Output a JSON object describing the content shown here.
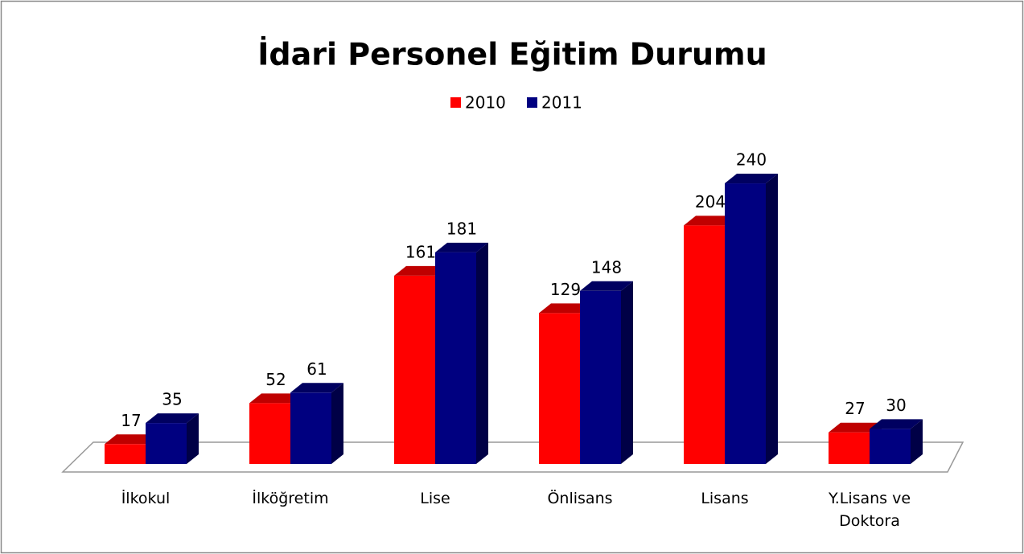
{
  "chart_data": {
    "type": "bar3d",
    "title": "İdari Personel Eğitim Durumu",
    "categories": [
      "İlkokul",
      "İlköğretim",
      "Lise",
      "Önlisans",
      "Lisans",
      "Y.Lisans ve Doktora"
    ],
    "series": [
      {
        "name": "2010",
        "color": "#ff0000",
        "values": [
          17,
          52,
          161,
          129,
          204,
          27
        ]
      },
      {
        "name": "2011",
        "color": "#000080",
        "values": [
          35,
          61,
          181,
          148,
          240,
          30
        ]
      }
    ],
    "legend": "top"
  }
}
